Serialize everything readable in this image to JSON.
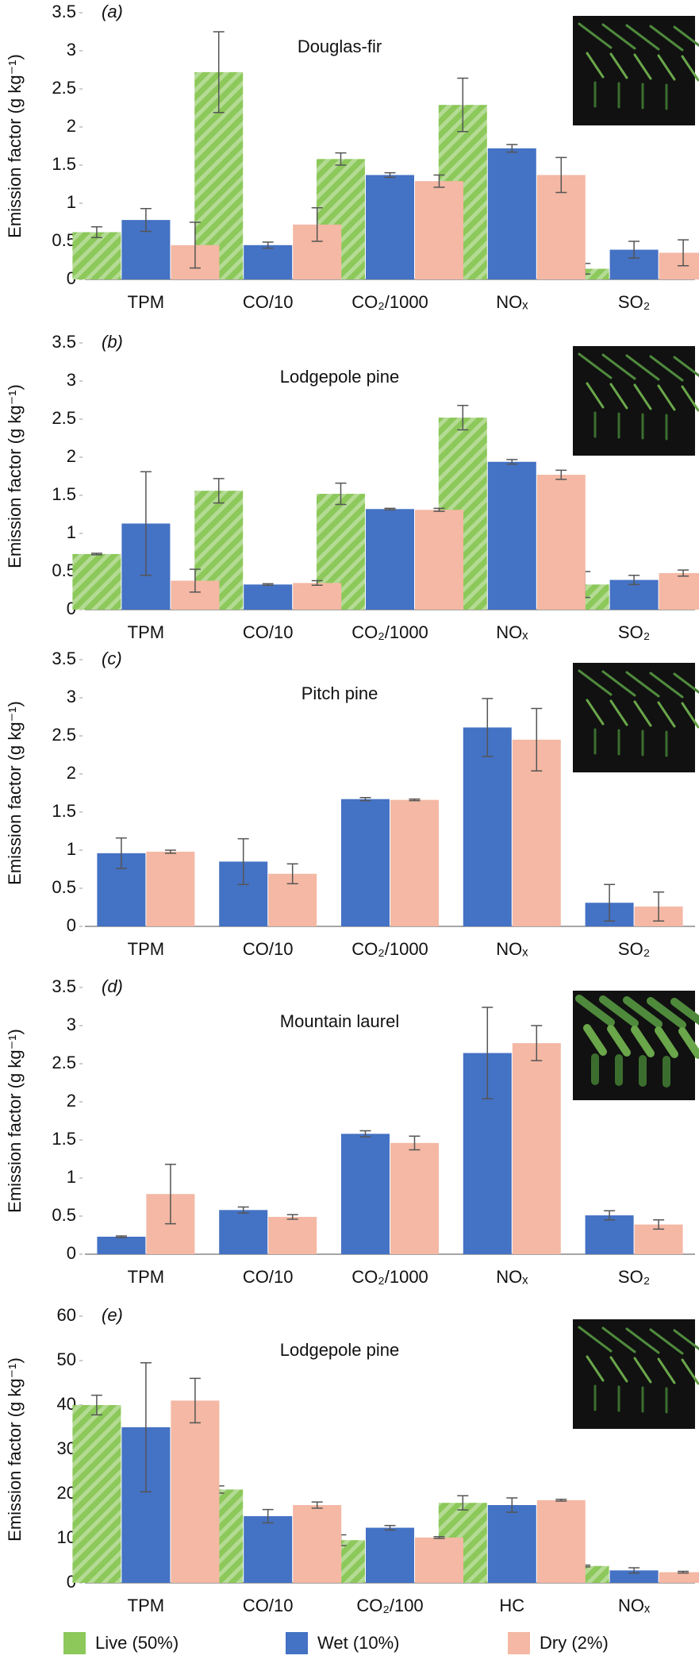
{
  "chart_data": [
    {
      "type": "bar",
      "panel_label": "(a)",
      "title": "Douglas-fir",
      "y_label": "Emission factor (g kg⁻¹)",
      "categories": [
        "TPM",
        "CO/10",
        "CO₂/1000",
        "NOₓ",
        "SO₂"
      ],
      "series": [
        {
          "name": "Live (50%)",
          "color": "#8cc85a",
          "hatch": true,
          "values": [
            0.62,
            2.72,
            1.58,
            2.29,
            0.14
          ],
          "errors": [
            0.07,
            0.53,
            0.08,
            0.35,
            0.07
          ]
        },
        {
          "name": "Wet (10%)",
          "color": "#4472c4",
          "values": [
            0.78,
            0.45,
            1.37,
            1.72,
            0.39
          ],
          "errors": [
            0.15,
            0.04,
            0.03,
            0.05,
            0.11
          ]
        },
        {
          "name": "Dry (2%)",
          "color": "#f4b8a4",
          "values": [
            0.45,
            0.72,
            1.29,
            1.37,
            0.35
          ],
          "errors": [
            0.3,
            0.22,
            0.08,
            0.23,
            0.17
          ]
        }
      ],
      "ylim": [
        0,
        3.5
      ],
      "yticks": [
        0,
        0.5,
        1,
        1.5,
        2,
        2.5,
        3,
        3.5
      ]
    },
    {
      "type": "bar",
      "panel_label": "(b)",
      "title": "Lodgepole pine",
      "y_label": "Emission factor (g kg⁻¹)",
      "categories": [
        "TPM",
        "CO/10",
        "CO₂/1000",
        "NOₓ",
        "SO₂"
      ],
      "series": [
        {
          "name": "Live (50%)",
          "color": "#8cc85a",
          "hatch": true,
          "values": [
            0.73,
            1.56,
            1.52,
            2.52,
            0.33
          ],
          "errors": [
            0.01,
            0.16,
            0.14,
            0.16,
            0.17
          ]
        },
        {
          "name": "Wet (10%)",
          "color": "#4472c4",
          "values": [
            1.13,
            0.33,
            1.32,
            1.94,
            0.39
          ],
          "errors": [
            0.68,
            0.01,
            0.01,
            0.03,
            0.06
          ]
        },
        {
          "name": "Dry (2%)",
          "color": "#f4b8a4",
          "values": [
            0.38,
            0.35,
            1.31,
            1.77,
            0.48
          ],
          "errors": [
            0.15,
            0.03,
            0.02,
            0.06,
            0.04
          ]
        }
      ],
      "ylim": [
        0,
        3.5
      ],
      "yticks": [
        0,
        0.5,
        1,
        1.5,
        2,
        2.5,
        3,
        3.5
      ]
    },
    {
      "type": "bar",
      "panel_label": "(c)",
      "title": "Pitch pine",
      "y_label": "Emission factor (g kg⁻¹)",
      "categories": [
        "TPM",
        "CO/10",
        "CO₂/1000",
        "NOₓ",
        "SO₂"
      ],
      "series": [
        {
          "name": "Wet (10%)",
          "color": "#4472c4",
          "values": [
            0.96,
            0.85,
            1.67,
            2.61,
            0.31
          ],
          "errors": [
            0.2,
            0.3,
            0.02,
            0.38,
            0.24
          ]
        },
        {
          "name": "Dry (2%)",
          "color": "#f4b8a4",
          "values": [
            0.98,
            0.69,
            1.66,
            2.45,
            0.26
          ],
          "errors": [
            0.02,
            0.13,
            0.01,
            0.41,
            0.19
          ]
        }
      ],
      "ylim": [
        0,
        3.5
      ],
      "yticks": [
        0,
        0.5,
        1,
        1.5,
        2,
        2.5,
        3,
        3.5
      ]
    },
    {
      "type": "bar",
      "panel_label": "(d)",
      "title": "Mountain laurel",
      "y_label": "Emission factor (g kg⁻¹)",
      "categories": [
        "TPM",
        "CO/10",
        "CO₂/1000",
        "NOₓ",
        "SO₂"
      ],
      "series": [
        {
          "name": "Wet (10%)",
          "color": "#4472c4",
          "values": [
            0.23,
            0.58,
            1.58,
            2.64,
            0.51
          ],
          "errors": [
            0.01,
            0.04,
            0.04,
            0.6,
            0.06
          ]
        },
        {
          "name": "Dry (2%)",
          "color": "#f4b8a4",
          "values": [
            0.79,
            0.49,
            1.46,
            2.77,
            0.39
          ],
          "errors": [
            0.39,
            0.03,
            0.09,
            0.23,
            0.06
          ]
        }
      ],
      "ylim": [
        0,
        3.5
      ],
      "yticks": [
        0,
        0.5,
        1,
        1.5,
        2,
        2.5,
        3,
        3.5
      ]
    },
    {
      "type": "bar",
      "panel_label": "(e)",
      "title": "Lodgepole pine",
      "y_label": "Emission factor (g kg⁻¹)",
      "categories": [
        "TPM",
        "CO/10",
        "CO₂/100",
        "HC",
        "NOₓ"
      ],
      "series": [
        {
          "name": "Live (50%)",
          "color": "#8cc85a",
          "hatch": true,
          "values": [
            40,
            21,
            9.6,
            18,
            3.8
          ],
          "errors": [
            2.2,
            0.8,
            1.2,
            1.6,
            0.2
          ]
        },
        {
          "name": "Wet (10%)",
          "color": "#4472c4",
          "values": [
            35,
            15,
            12.4,
            17.5,
            2.8
          ],
          "errors": [
            14.5,
            1.5,
            0.5,
            1.6,
            0.6
          ]
        },
        {
          "name": "Dry (2%)",
          "color": "#f4b8a4",
          "values": [
            41,
            17.5,
            10.2,
            18.6,
            2.4
          ],
          "errors": [
            5,
            0.7,
            0.2,
            0.2,
            0.2
          ]
        }
      ],
      "ylim": [
        0,
        60
      ],
      "yticks": [
        0,
        10,
        20,
        30,
        40,
        50,
        60
      ]
    }
  ]
}
